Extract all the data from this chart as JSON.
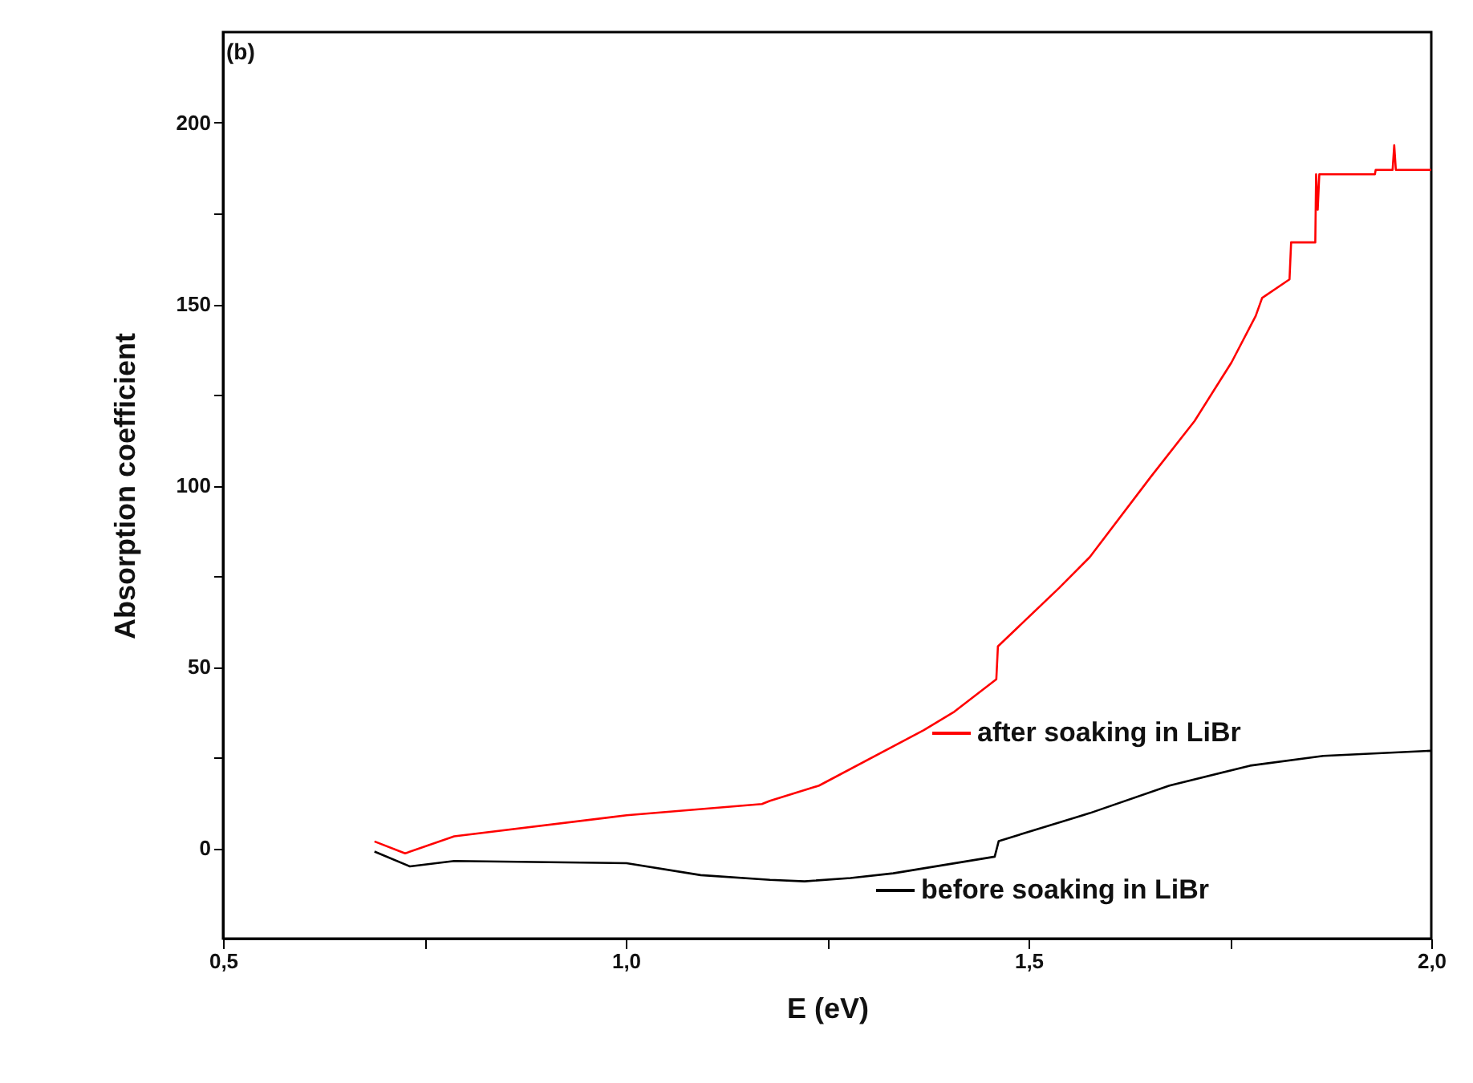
{
  "chart_data": {
    "type": "line",
    "xlabel": "E (eV)",
    "ylabel": "Absorption coefficient",
    "annotations": [
      "(b)"
    ],
    "xlim": [
      0.5,
      2.0
    ],
    "xticks": [
      {
        "value": 0.5,
        "label": "0,5"
      },
      {
        "value": 0.75,
        "label": null
      },
      {
        "value": 1.0,
        "label": "1,0"
      },
      {
        "value": 1.25,
        "label": null
      },
      {
        "value": 1.5,
        "label": "1,5"
      },
      {
        "value": 1.75,
        "label": null
      },
      {
        "value": 2.0,
        "label": "2,0"
      }
    ],
    "ylim": [
      -25,
      225
    ],
    "yticks": [
      0,
      {
        "value": 25,
        "label": null
      },
      50,
      {
        "value": 75,
        "label": null
      },
      100,
      {
        "value": 125,
        "label": null
      },
      150,
      {
        "value": 175,
        "label": null
      },
      200
    ],
    "grid": false,
    "series": [
      {
        "name": "after soaking in LiBr",
        "color": "#ff0000",
        "x": [
          0.688,
          0.726,
          0.787,
          1.001,
          1.169,
          1.179,
          1.24,
          1.37,
          1.408,
          1.46,
          1.462,
          1.538,
          1.576,
          1.652,
          1.706,
          1.752,
          1.782,
          1.79,
          1.824,
          1.826,
          1.852,
          1.856,
          1.857,
          1.859,
          1.861,
          1.93,
          1.931,
          1.952,
          1.954,
          1.956,
          2.0
        ],
        "values": [
          1.8,
          -1.5,
          3.2,
          9,
          12.1,
          13,
          17.2,
          32.5,
          37.6,
          46.5,
          55.6,
          71.7,
          80.2,
          102.4,
          117.7,
          133.9,
          146.7,
          151.7,
          156.8,
          167,
          167,
          167,
          185.8,
          176,
          185.8,
          185.8,
          187,
          187,
          193.8,
          187,
          187
        ]
      },
      {
        "name": "before soaking in LiBr",
        "color": "#000000",
        "x": [
          0.688,
          0.732,
          0.787,
          1.001,
          1.093,
          1.179,
          1.222,
          1.279,
          1.332,
          1.458,
          1.463,
          1.576,
          1.675,
          1.775,
          1.866,
          2.0
        ],
        "values": [
          -1,
          -5.1,
          -3.6,
          -4.2,
          -7.5,
          -8.8,
          -9.2,
          -8.3,
          -7,
          -2.4,
          1.9,
          9.6,
          17.2,
          22.7,
          25.4,
          26.8
        ]
      }
    ],
    "legend": "bottom right"
  }
}
